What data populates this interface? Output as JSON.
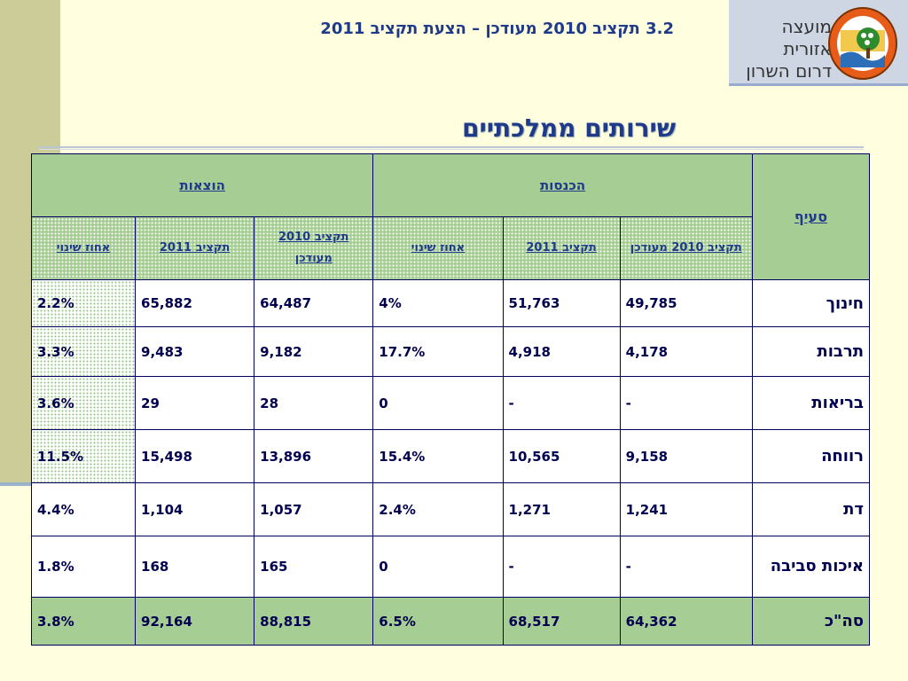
{
  "slide_header": "3.2 תקציב 2010 מעודכן – הצעת תקציב 2011",
  "logo": {
    "line1": "מועצה אזורית",
    "line2": "דרום השרון",
    "emblem_text": "מועצה אזורית דרום השרון"
  },
  "section_title": "שירותים ממלכתיים",
  "table": {
    "header_item": "סעיף",
    "group_income": "הכנסות",
    "group_expense": "הוצאות",
    "sub_headers": [
      "תקציב 2010 מעודכן",
      "תקציב 2011",
      "אחוז שינוי",
      "תקציב 2010 מעודכן",
      "תקציב 2011",
      "אחוז שינוי"
    ],
    "rows": [
      {
        "label": "חינוך",
        "values": [
          "49,785",
          "51,763",
          "4%",
          "64,487",
          "65,882",
          "2.2%"
        ]
      },
      {
        "label": "תרבות",
        "values": [
          "4,178",
          "4,918",
          "17.7%",
          "9,182",
          "9,483",
          "3.3%"
        ]
      },
      {
        "label": "בריאות",
        "values": [
          "-",
          "-",
          "0",
          "28",
          "29",
          "3.6%"
        ]
      },
      {
        "label": "רווחה",
        "values": [
          "9,158",
          "10,565",
          "15.4%",
          "13,896",
          "15,498",
          "11.5%"
        ]
      },
      {
        "label": "דת",
        "values": [
          "1,241",
          "1,271",
          "2.4%",
          "1,057",
          "1,104",
          "4.4%"
        ]
      },
      {
        "label": "איכות סביבה",
        "values": [
          "-",
          "-",
          "0",
          "165",
          "168",
          "1.8%"
        ]
      }
    ],
    "total": {
      "label": "סה\"כ",
      "values": [
        "64,362",
        "68,517",
        "6.5%",
        "88,815",
        "92,164",
        "3.8%"
      ]
    }
  },
  "colors": {
    "background": "#ffffe0",
    "header_green": "#a6cd94",
    "title_blue": "#1f3a8a",
    "left_band": "#cccc99"
  }
}
